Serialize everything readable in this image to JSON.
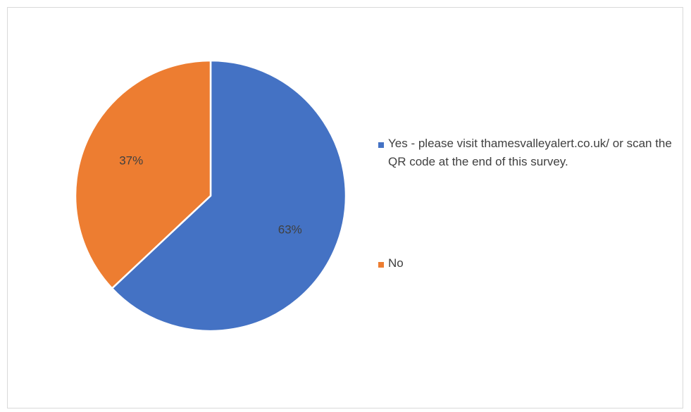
{
  "chart_data": {
    "type": "pie",
    "title": "",
    "categories": [
      "Yes - please visit thamesvalleyalert.co.uk/ or scan the QR code at the end of this survey.",
      "No"
    ],
    "values": [
      63,
      37
    ],
    "labels": [
      "63%",
      "37%"
    ],
    "colors": [
      "#4472C4",
      "#ED7D31"
    ],
    "legend_position": "right",
    "start_angle": "12 o'clock, clockwise"
  }
}
